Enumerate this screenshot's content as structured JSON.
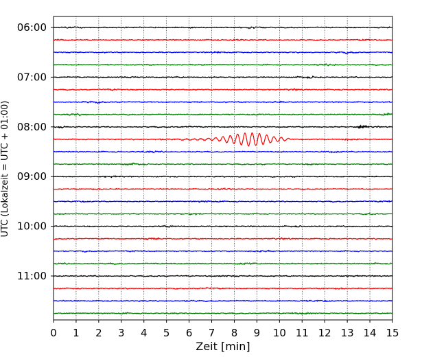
{
  "chart_data": {
    "type": "line",
    "xlabel": "Zeit  [min]",
    "ylabel": "UTC (Lokalzeit = UTC + 01:00)",
    "xlim": [
      0,
      15
    ],
    "x_ticks": [
      "0",
      "1",
      "2",
      "3",
      "4",
      "5",
      "6",
      "7",
      "8",
      "9",
      "10",
      "11",
      "12",
      "13",
      "14",
      "15"
    ],
    "y_ticks": [
      "06:00",
      "07:00",
      "08:00",
      "09:00",
      "10:00",
      "11:00"
    ],
    "trace_interval_minutes": 15,
    "trace_start": "06:00",
    "trace_end": "11:45",
    "trace_colors": [
      "#000000",
      "#ff0000",
      "#0000ff",
      "#008000"
    ],
    "grid": "vertical dotted at each minute",
    "events": [
      {
        "trace": "08:00",
        "x_start": 13.4,
        "x_end": 14.0,
        "amplitude": "moderate"
      },
      {
        "trace": "08:15",
        "x_start": 5.0,
        "x_end": 10.5,
        "peak_x": 8.7,
        "amplitude": "large"
      }
    ]
  }
}
